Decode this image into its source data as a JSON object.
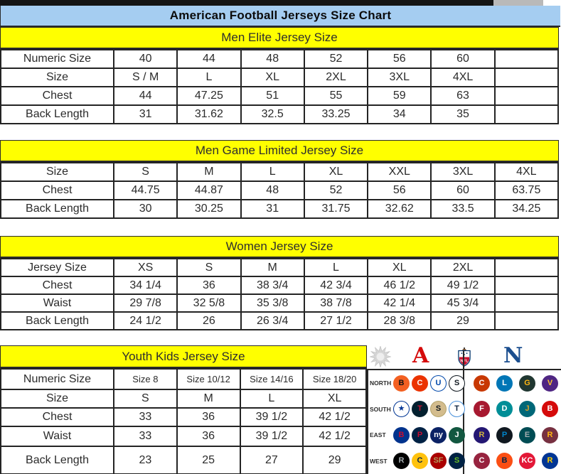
{
  "title": "American Football Jerseys Size Chart",
  "tables": [
    {
      "id": "men-elite",
      "header": "Men Elite Jersey Size",
      "rows": [
        {
          "label": "Numeric Size",
          "values": [
            "40",
            "44",
            "48",
            "52",
            "56",
            "60",
            ""
          ]
        },
        {
          "label": "Size",
          "values": [
            "S / M",
            "L",
            "XL",
            "2XL",
            "3XL",
            "4XL",
            ""
          ]
        },
        {
          "label": "Chest",
          "values": [
            "44",
            "47.25",
            "51",
            "55",
            "59",
            "63",
            ""
          ]
        },
        {
          "label": "Back Length",
          "values": [
            "31",
            "31.62",
            "32.5",
            "33.25",
            "34",
            "35",
            ""
          ]
        }
      ]
    },
    {
      "id": "men-game-limited",
      "header": "Men Game Limited Jersey Size",
      "rows": [
        {
          "label": "Size",
          "values": [
            "S",
            "M",
            "L",
            "XL",
            "XXL",
            "3XL",
            "4XL"
          ]
        },
        {
          "label": "Chest",
          "values": [
            "44.75",
            "44.87",
            "48",
            "52",
            "56",
            "60",
            "63.75"
          ]
        },
        {
          "label": "Back Length",
          "values": [
            "30",
            "30.25",
            "31",
            "31.75",
            "32.62",
            "33.5",
            "34.25"
          ]
        }
      ]
    },
    {
      "id": "women",
      "header": "Women Jersey Size",
      "rows": [
        {
          "label": "Jersey Size",
          "values": [
            "XS",
            "S",
            "M",
            "L",
            "XL",
            "2XL",
            ""
          ]
        },
        {
          "label": "Chest",
          "values": [
            "34 1/4",
            "36",
            "38 3/4",
            "42 3/4",
            "46 1/2",
            "49 1/2",
            ""
          ]
        },
        {
          "label": "Waist",
          "values": [
            "29 7/8",
            "32 5/8",
            "35 3/8",
            "38 7/8",
            "42 1/4",
            "45 3/4",
            ""
          ]
        },
        {
          "label": "Back Length",
          "values": [
            "24 1/2",
            "26",
            "26 3/4",
            "27 1/2",
            "28 3/8",
            "29",
            ""
          ]
        }
      ]
    },
    {
      "id": "youth-kids",
      "header": "Youth Kids Jersey Size",
      "rows": [
        {
          "label": "Numeric Size",
          "values": [
            "Size 8",
            "Size 10/12",
            "Size 14/16",
            "Size 18/20"
          ]
        },
        {
          "label": "Size",
          "values": [
            "S",
            "M",
            "L",
            "XL"
          ]
        },
        {
          "label": "Chest",
          "values": [
            "33",
            "36",
            "39 1/2",
            "42 1/2"
          ]
        },
        {
          "label": "Waist",
          "values": [
            "33",
            "36",
            "39 1/2",
            "42 1/2"
          ]
        },
        {
          "label": "Back Length",
          "values": [
            "23",
            "25",
            "27",
            "29"
          ]
        }
      ]
    }
  ],
  "colors": {
    "title_bg": "#a5cdf1",
    "section_header_bg": "#ffff00",
    "grid_line": "#242424",
    "afc_red": "#d50a0a",
    "nfc_blue": "#1b4e8f",
    "shield_navy": "#013369",
    "shield_red": "#c8102e",
    "starburst_gray": "#d6d6d6"
  },
  "logo_panel": {
    "conference_icons": [
      {
        "name": "starburst",
        "glyph": ""
      },
      {
        "name": "afc",
        "glyph": "A"
      },
      {
        "name": "nfl-shield",
        "glyph": "NFL"
      },
      {
        "name": "nfc",
        "glyph": "N"
      }
    ],
    "divisions": [
      {
        "label": "NORTH",
        "afc": [
          {
            "team": "Bengals",
            "glyph": "B",
            "bg": "#f36021",
            "fg": "#111111",
            "border": "#f36021"
          },
          {
            "team": "Browns",
            "glyph": "C",
            "bg": "#eb3300",
            "fg": "#ffffff",
            "border": "#eb3300"
          },
          {
            "team": "Colts",
            "glyph": "U",
            "bg": "#ffffff",
            "fg": "#0048ab",
            "border": "#0048ab"
          },
          {
            "team": "Steelers",
            "glyph": "S",
            "bg": "#ffffff",
            "fg": "#101820",
            "border": "#101820"
          }
        ],
        "nfc": [
          {
            "team": "Bears",
            "glyph": "C",
            "bg": "#c83803",
            "fg": "#ffffff",
            "border": "#c83803"
          },
          {
            "team": "Lions",
            "glyph": "L",
            "bg": "#0076b6",
            "fg": "#ffffff",
            "border": "#0076b6"
          },
          {
            "team": "Packers",
            "glyph": "G",
            "bg": "#203731",
            "fg": "#ffb612",
            "border": "#203731"
          },
          {
            "team": "Vikings",
            "glyph": "V",
            "bg": "#4f2683",
            "fg": "#ffc62f",
            "border": "#4f2683"
          }
        ]
      },
      {
        "label": "SOUTH",
        "afc": [
          {
            "team": "Cowboys",
            "glyph": "★",
            "bg": "#ffffff",
            "fg": "#003594",
            "border": "#003594"
          },
          {
            "team": "Texans",
            "glyph": "T",
            "bg": "#03202f",
            "fg": "#c41230",
            "border": "#03202f"
          },
          {
            "team": "Saints",
            "glyph": "S",
            "bg": "#d3bc8d",
            "fg": "#101820",
            "border": "#b3a369"
          },
          {
            "team": "Titans",
            "glyph": "T",
            "bg": "#ffffff",
            "fg": "#0c2340",
            "border": "#4b92db"
          }
        ],
        "nfc": [
          {
            "team": "Falcons",
            "glyph": "F",
            "bg": "#a71930",
            "fg": "#ffffff",
            "border": "#a71930"
          },
          {
            "team": "Dolphins",
            "glyph": "D",
            "bg": "#008e97",
            "fg": "#ffffff",
            "border": "#008e97"
          },
          {
            "team": "Jaguars",
            "glyph": "J",
            "bg": "#006778",
            "fg": "#d7a22a",
            "border": "#006778"
          },
          {
            "team": "Buccaneers",
            "glyph": "B",
            "bg": "#d50a0a",
            "fg": "#ffffff",
            "border": "#d50a0a"
          }
        ]
      },
      {
        "label": "EAST",
        "afc": [
          {
            "team": "Bills",
            "glyph": "B",
            "bg": "#00338d",
            "fg": "#c60c30",
            "border": "#00338d"
          },
          {
            "team": "Patriots",
            "glyph": "P",
            "bg": "#002244",
            "fg": "#c60c30",
            "border": "#002244"
          },
          {
            "team": "Giants",
            "glyph": "ny",
            "bg": "#0b2265",
            "fg": "#ffffff",
            "border": "#0b2265"
          },
          {
            "team": "Jets",
            "glyph": "J",
            "bg": "#125740",
            "fg": "#ffffff",
            "border": "#125740"
          }
        ],
        "nfc": [
          {
            "team": "Ravens",
            "glyph": "R",
            "bg": "#241773",
            "fg": "#d0b240",
            "border": "#241773"
          },
          {
            "team": "Panthers",
            "glyph": "P",
            "bg": "#101820",
            "fg": "#0085ca",
            "border": "#101820"
          },
          {
            "team": "Eagles",
            "glyph": "E",
            "bg": "#004c54",
            "fg": "#a5acaf",
            "border": "#004c54"
          },
          {
            "team": "Redskins",
            "glyph": "R",
            "bg": "#773141",
            "fg": "#ffb612",
            "border": "#773141"
          }
        ]
      },
      {
        "label": "WEST",
        "afc": [
          {
            "team": "Raiders",
            "glyph": "R",
            "bg": "#000000",
            "fg": "#a5acaf",
            "border": "#000000"
          },
          {
            "team": "Chargers",
            "glyph": "C",
            "bg": "#ffc20e",
            "fg": "#0a2342",
            "border": "#ffc20e"
          },
          {
            "team": "49ers",
            "glyph": "SF",
            "bg": "#aa0000",
            "fg": "#b3995d",
            "border": "#aa0000"
          },
          {
            "team": "Seahawks",
            "glyph": "S",
            "bg": "#002244",
            "fg": "#69be28",
            "border": "#002244"
          }
        ],
        "nfc": [
          {
            "team": "Cardinals",
            "glyph": "C",
            "bg": "#97233f",
            "fg": "#ffffff",
            "border": "#97233f"
          },
          {
            "team": "Broncos",
            "glyph": "B",
            "bg": "#fb4f14",
            "fg": "#002244",
            "border": "#fb4f14"
          },
          {
            "team": "Chiefs",
            "glyph": "KC",
            "bg": "#e31837",
            "fg": "#ffffff",
            "border": "#e31837"
          },
          {
            "team": "Rams",
            "glyph": "R",
            "bg": "#003594",
            "fg": "#ffd100",
            "border": "#003594"
          }
        ]
      }
    ]
  }
}
